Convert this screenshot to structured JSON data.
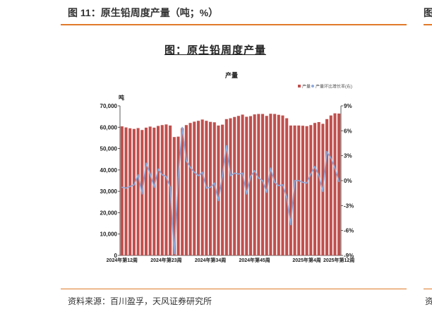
{
  "header": {
    "figure_title": "图 11：原生铅周度产量（吨；%）",
    "right_cut": "图"
  },
  "source": {
    "text": "资料来源：百川盈孚，天风证券研究所",
    "right_cut": "资"
  },
  "chart_data": {
    "type": "bar",
    "figure_title": "图：原生铅周度产量",
    "title": "产量",
    "ylabel": "吨",
    "legend_position": "top-right",
    "x_tick_labels": [
      "2024年第12周",
      "2024年第23周",
      "2024年第34周",
      "2024年第45周",
      "2025年第4周",
      "2025年第12周"
    ],
    "left_axis": {
      "min": 0,
      "max": 70000,
      "ticks": [
        "0",
        "10,000",
        "20,000",
        "30,000",
        "40,000",
        "50,000",
        "60,000",
        "70,000"
      ]
    },
    "right_axis": {
      "min": -9,
      "max": 9,
      "ticks": [
        "-9%",
        "-6%",
        "-3%",
        "0%",
        "3%",
        "6%",
        "9%"
      ]
    },
    "colors": {
      "bar": "#c0504d",
      "line": "#8faadc"
    },
    "series": [
      {
        "name": "产量",
        "axis": "left",
        "values": [
          60400,
          59900,
          59500,
          59200,
          59600,
          58700,
          59800,
          60300,
          59800,
          60600,
          61000,
          61300,
          60800,
          55400,
          55600,
          59600,
          61000,
          62000,
          62600,
          63000,
          63600,
          63000,
          62500,
          62300,
          60800,
          61200,
          63800,
          64200,
          64800,
          65300,
          65900,
          64900,
          65200,
          66000,
          66200,
          66200,
          65300,
          66300,
          66200,
          65800,
          65500,
          64200,
          60800,
          60800,
          60800,
          60700,
          60500,
          61000,
          62000,
          62400,
          61600,
          63800,
          65500,
          66500,
          66400
        ]
      },
      {
        "name": "产量环比增长率(右)",
        "axis": "right",
        "values": [
          -0.8,
          -0.9,
          -0.7,
          -0.5,
          0.7,
          -1.6,
          2.1,
          0.8,
          -0.8,
          1.4,
          0.7,
          0.5,
          -0.8,
          -8.8,
          0.4,
          6.4,
          2.4,
          1.6,
          1.0,
          0.6,
          1.0,
          -0.9,
          -0.8,
          -0.3,
          -2.4,
          0.6,
          4.2,
          0.6,
          0.9,
          0.8,
          0.9,
          -1.6,
          0.5,
          1.2,
          0.3,
          0.0,
          -1.4,
          1.5,
          -0.2,
          -0.6,
          -0.5,
          -2.0,
          -5.3,
          0.0,
          0.0,
          -0.2,
          -0.3,
          0.8,
          1.7,
          0.6,
          -1.3,
          3.5,
          2.7,
          1.5,
          -0.1
        ]
      }
    ]
  }
}
